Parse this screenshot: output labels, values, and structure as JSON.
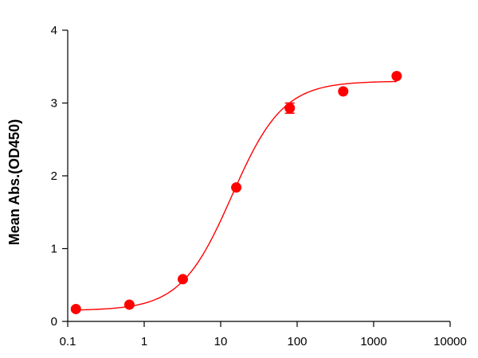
{
  "chart_data": {
    "type": "scatter",
    "title": "",
    "xlabel": "",
    "ylabel": "Mean Abs.(OD450)",
    "x_scale": "log",
    "xlim": [
      0.1,
      10000
    ],
    "ylim": [
      0,
      4
    ],
    "x_ticks": [
      "0.1",
      "1",
      "10",
      "100",
      "1000",
      "10000"
    ],
    "y_ticks": [
      "0",
      "1",
      "2",
      "3",
      "4"
    ],
    "grid": false,
    "legend": "none",
    "color": "#ff0000",
    "series": [
      {
        "points": [
          {
            "x": 0.128,
            "y": 0.17,
            "err": 0
          },
          {
            "x": 0.64,
            "y": 0.23,
            "err": 0
          },
          {
            "x": 3.2,
            "y": 0.58,
            "err": 0
          },
          {
            "x": 16,
            "y": 1.84,
            "err": 0
          },
          {
            "x": 80,
            "y": 2.93,
            "err": 0.07
          },
          {
            "x": 400,
            "y": 3.16,
            "err": 0
          },
          {
            "x": 2000,
            "y": 3.37,
            "err": 0
          }
        ],
        "fit": {
          "model": "four-parameter logistic",
          "bottom": 0.15,
          "top": 3.3,
          "ec50": 14,
          "hill": 1.3
        }
      }
    ]
  }
}
